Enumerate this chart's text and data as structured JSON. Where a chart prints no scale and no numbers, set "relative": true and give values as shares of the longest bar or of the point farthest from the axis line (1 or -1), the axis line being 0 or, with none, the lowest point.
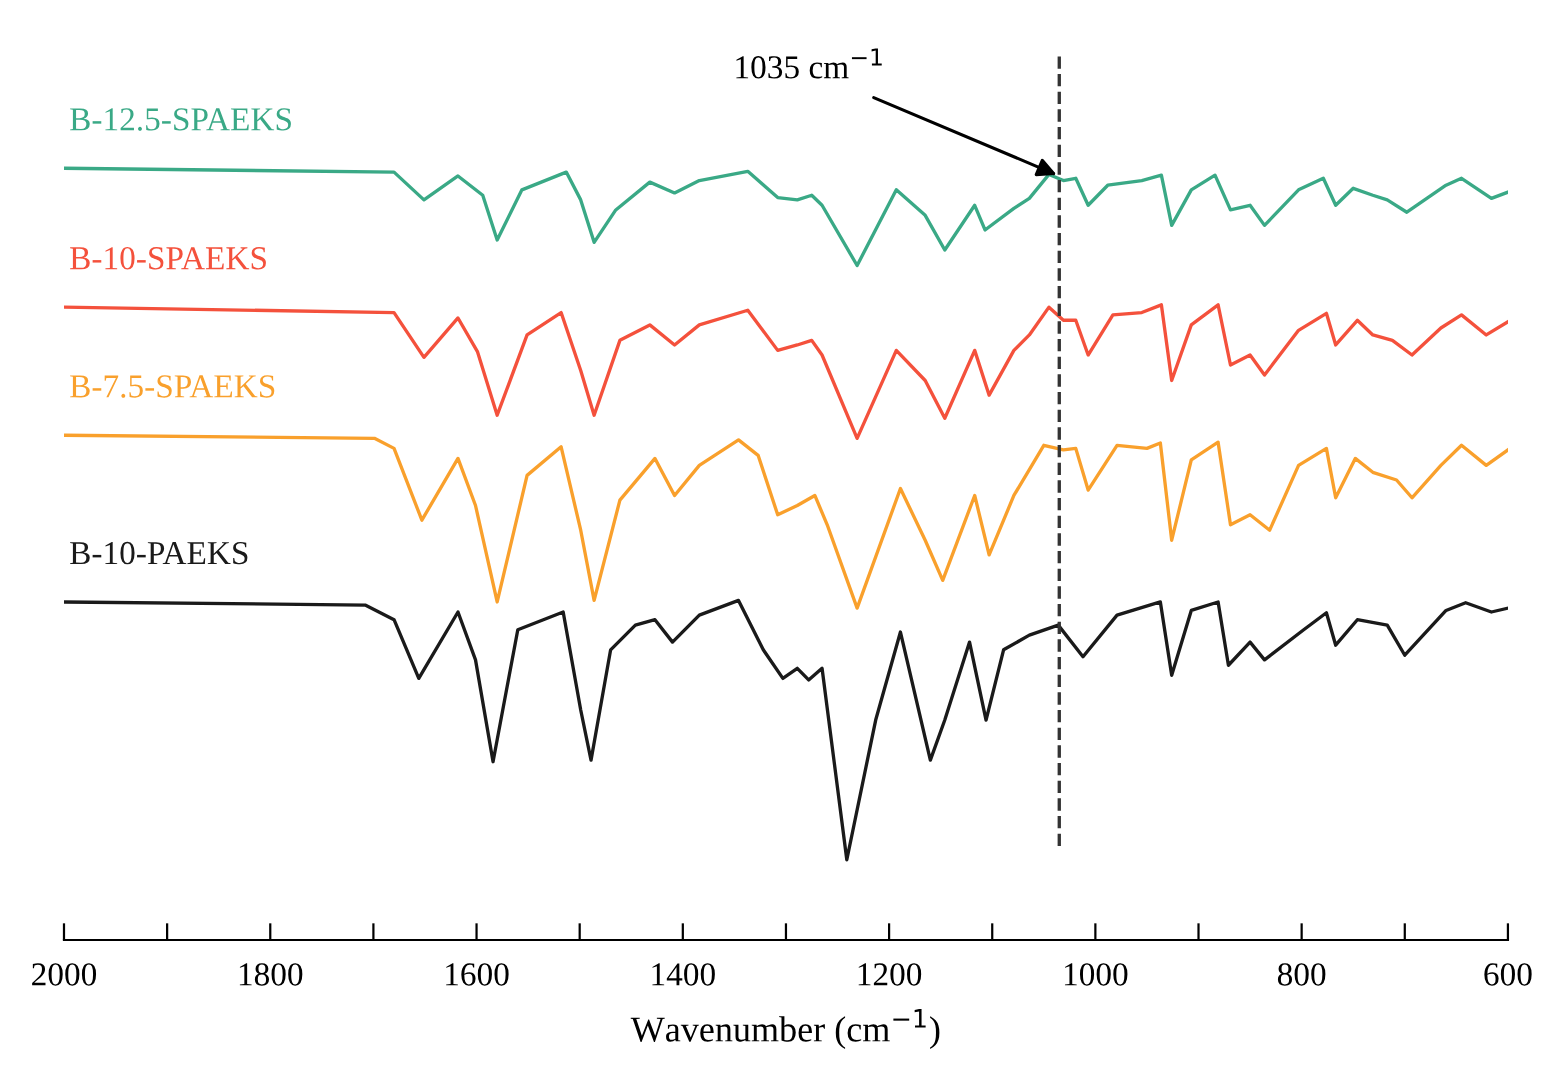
{
  "chart_data": {
    "type": "line",
    "relative": true,
    "xlabel": "Wavenumber (cm$^{−1}$)",
    "xlim": [
      2000,
      600
    ],
    "xticks": [
      2000,
      {
        "value": 1900,
        "label": null
      },
      1800,
      {
        "value": 1700,
        "label": null
      },
      1600,
      {
        "value": 1500,
        "label": null
      },
      1400,
      {
        "value": 1300,
        "label": null
      },
      1200,
      {
        "value": 1100,
        "label": null
      },
      1000,
      {
        "value": 900,
        "label": null
      },
      800,
      {
        "value": 700,
        "label": null
      },
      600
    ],
    "grid": false,
    "legend": false,
    "marker": "none",
    "line_style": "solid",
    "ref_lines": [
      {
        "axis": "x",
        "value": 1035,
        "line_style": "dashed",
        "color": "#333333"
      }
    ],
    "annotations": [
      {
        "text": "1035 cm$^{−1}$",
        "x": 1035,
        "y": 0.99
      }
    ],
    "series": [
      {
        "name": "B-12.5-SPAEKS",
        "color": "#3aa986",
        "x": [
          2000,
          1680,
          1651,
          1618,
          1594,
          1580,
          1556,
          1513,
          1499,
          1486,
          1465,
          1432,
          1408,
          1384,
          1337,
          1308,
          1289,
          1275,
          1265,
          1231,
          1193,
          1165,
          1146,
          1117,
          1107,
          1079,
          1064,
          1045,
          1031,
          1019,
          1007,
          988,
          955,
          936,
          926,
          907,
          884,
          869,
          850,
          836,
          803,
          779,
          767,
          750,
          731,
          717,
          698,
          660,
          645,
          616,
          600
        ],
        "values": [
          1.0,
          0.995,
          0.959,
          0.99,
          0.965,
          0.907,
          0.972,
          0.995,
          0.959,
          0.904,
          0.946,
          0.982,
          0.968,
          0.984,
          0.996,
          0.962,
          0.959,
          0.965,
          0.952,
          0.874,
          0.972,
          0.939,
          0.894,
          0.952,
          0.92,
          0.948,
          0.961,
          0.992,
          0.984,
          0.987,
          0.952,
          0.978,
          0.984,
          0.991,
          0.926,
          0.972,
          0.991,
          0.946,
          0.952,
          0.926,
          0.972,
          0.987,
          0.952,
          0.974,
          0.965,
          0.959,
          0.943,
          0.978,
          0.987,
          0.961,
          0.969
        ]
      },
      {
        "name": "B-10-SPAEKS",
        "color": "#f4513c",
        "x": [
          2000,
          1680,
          1651,
          1618,
          1599,
          1580,
          1551,
          1518,
          1499,
          1486,
          1461,
          1432,
          1408,
          1384,
          1337,
          1308,
          1289,
          1275,
          1265,
          1231,
          1193,
          1165,
          1146,
          1117,
          1103,
          1079,
          1064,
          1045,
          1031,
          1019,
          1007,
          983,
          955,
          936,
          926,
          907,
          881,
          869,
          850,
          836,
          803,
          776,
          767,
          746,
          731,
          712,
          693,
          665,
          645,
          621,
          600
        ],
        "values": [
          0.82,
          0.813,
          0.755,
          0.806,
          0.762,
          0.68,
          0.784,
          0.813,
          0.738,
          0.68,
          0.777,
          0.797,
          0.771,
          0.797,
          0.816,
          0.764,
          0.771,
          0.777,
          0.758,
          0.65,
          0.764,
          0.725,
          0.676,
          0.764,
          0.706,
          0.764,
          0.784,
          0.82,
          0.803,
          0.803,
          0.758,
          0.81,
          0.813,
          0.823,
          0.725,
          0.797,
          0.823,
          0.745,
          0.758,
          0.732,
          0.79,
          0.812,
          0.771,
          0.803,
          0.784,
          0.777,
          0.758,
          0.793,
          0.81,
          0.784,
          0.801
        ]
      },
      {
        "name": "B-7.5-SPAEKS",
        "color": "#f9a02c",
        "x": [
          2000,
          1699,
          1680,
          1653,
          1618,
          1601,
          1580,
          1551,
          1518,
          1499,
          1486,
          1461,
          1427,
          1408,
          1384,
          1346,
          1327,
          1308,
          1289,
          1272,
          1260,
          1231,
          1189,
          1165,
          1148,
          1117,
          1103,
          1079,
          1050,
          1031,
          1019,
          1007,
          979,
          950,
          937,
          926,
          907,
          881,
          869,
          850,
          831,
          803,
          776,
          767,
          748,
          731,
          708,
          693,
          665,
          645,
          621,
          600
        ],
        "values": [
          0.654,
          0.65,
          0.637,
          0.544,
          0.624,
          0.563,
          0.438,
          0.602,
          0.639,
          0.531,
          0.44,
          0.57,
          0.624,
          0.576,
          0.615,
          0.648,
          0.628,
          0.551,
          0.563,
          0.576,
          0.538,
          0.43,
          0.585,
          0.518,
          0.466,
          0.576,
          0.499,
          0.576,
          0.641,
          0.635,
          0.637,
          0.583,
          0.641,
          0.637,
          0.644,
          0.518,
          0.622,
          0.645,
          0.538,
          0.551,
          0.531,
          0.615,
          0.637,
          0.573,
          0.624,
          0.606,
          0.596,
          0.573,
          0.615,
          0.641,
          0.615,
          0.635
        ]
      },
      {
        "name": "B-10-PAEKS",
        "color": "#1a1a1a",
        "x": [
          2000,
          1708,
          1680,
          1656,
          1618,
          1601,
          1584,
          1560,
          1516,
          1499,
          1489,
          1470,
          1446,
          1427,
          1410,
          1384,
          1346,
          1322,
          1303,
          1289,
          1278,
          1265,
          1241,
          1213,
          1189,
          1160,
          1146,
          1122,
          1106,
          1089,
          1064,
          1036,
          1012,
          979,
          937,
          926,
          907,
          881,
          871,
          850,
          836,
          798,
          776,
          767,
          746,
          717,
          700,
          660,
          641,
          616,
          600
        ],
        "values": [
          0.438,
          0.434,
          0.415,
          0.339,
          0.425,
          0.363,
          0.231,
          0.402,
          0.425,
          0.298,
          0.233,
          0.376,
          0.408,
          0.415,
          0.386,
          0.421,
          0.44,
          0.376,
          0.339,
          0.352,
          0.337,
          0.352,
          0.104,
          0.285,
          0.399,
          0.233,
          0.285,
          0.386,
          0.285,
          0.376,
          0.395,
          0.408,
          0.367,
          0.421,
          0.438,
          0.343,
          0.427,
          0.438,
          0.356,
          0.386,
          0.363,
          0.402,
          0.424,
          0.382,
          0.415,
          0.408,
          0.369,
          0.427,
          0.437,
          0.425,
          0.43
        ]
      }
    ]
  }
}
